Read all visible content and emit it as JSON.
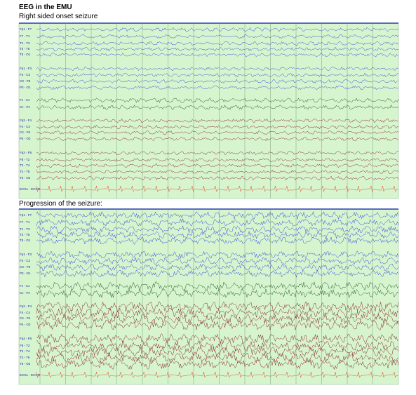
{
  "header": {
    "title": "EEG in the EMU"
  },
  "panels": [
    {
      "caption": "Right sided onset seizure",
      "channels": [
        "Fp1 - F7",
        "F7 - T1",
        "T1 - T3",
        "T3 - T5",
        "T5 - O1",
        "Fp1 - F3",
        "F3 - C3",
        "C3 - P3",
        "P3 - O1",
        "Fz - Cz",
        "Cz - Pz",
        "Fp2 - F4",
        "F4 - C4",
        "C4 - P4",
        "P4 - O2",
        "Fp2 - F8",
        "F8 - T2",
        "T2 - T4",
        "T4 - T6",
        "T6 - O2",
        "ECGL - ECGR"
      ]
    },
    {
      "caption": "Progression of the seizure:",
      "channels": [
        "Fp1 - F7",
        "F7 - T1",
        "T1 - T3",
        "T3 - T5",
        "T5 - O1",
        "Fp1 - F3",
        "F3 - C3",
        "C3 - P3",
        "P3 - O1",
        "Fz - Cz",
        "Cz - Pz",
        "Fp2 - F4",
        "F4 - C4",
        "C4 - P4",
        "P4 - O2",
        "Fp2 - F8",
        "F8 - T2",
        "T2 - T4",
        "T4 - T6",
        "T6 - O2",
        "ECGL - ECGR"
      ]
    }
  ]
}
